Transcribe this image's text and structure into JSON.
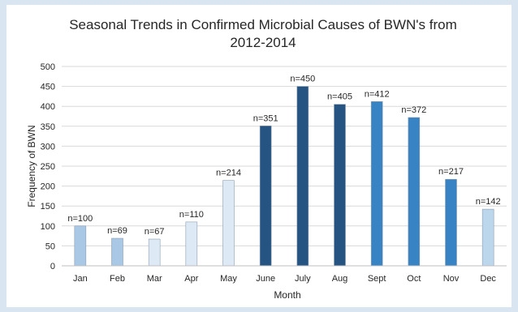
{
  "chart_data": {
    "type": "bar",
    "title_lines": [
      "Seasonal Trends in Confirmed Microbial Causes of BWN's from",
      "2012-2014"
    ],
    "xlabel": "Month",
    "ylabel": "Frequency of BWN",
    "ylim": [
      0,
      500
    ],
    "ytick_step": 50,
    "grid": true,
    "legend": "none",
    "categories": [
      "Jan",
      "Feb",
      "Mar",
      "Apr",
      "May",
      "June",
      "July",
      "Aug",
      "Sept",
      "Oct",
      "Nov",
      "Dec"
    ],
    "values": [
      100,
      69,
      67,
      110,
      214,
      351,
      450,
      405,
      412,
      372,
      217,
      142
    ],
    "data_labels": [
      "n=100",
      "n=69",
      "n=67",
      "n=110",
      "n=214",
      "n=351",
      "n=450",
      "n=405",
      "n=412",
      "n=372",
      "n=217",
      "n=142"
    ],
    "bar_colors": [
      "#a9c8e6",
      "#a9c8e6",
      "#ddeaf6",
      "#ddeaf6",
      "#ddeaf6",
      "#255483",
      "#255483",
      "#255483",
      "#3783c4",
      "#3783c4",
      "#3783c4",
      "#bcd6ec"
    ]
  }
}
